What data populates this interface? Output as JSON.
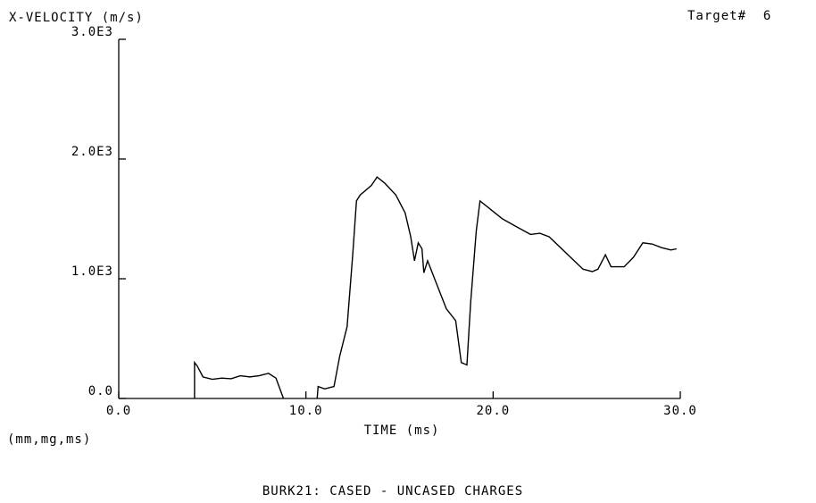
{
  "chart_data": {
    "type": "line",
    "title": "X-VELOCITY (m/s)",
    "annotation": "Target#  6",
    "x_label": "TIME (ms)",
    "units_note": "(mm,mg,ms)",
    "caption": "BURK21: CASED - UNCASED CHARGES",
    "color": "#000000",
    "x": [
      4.05,
      4.05,
      4.2,
      4.5,
      5,
      5.5,
      6,
      6.5,
      7,
      7.5,
      8,
      8.4,
      8.8,
      9.5,
      10.6,
      10.65,
      11.0,
      11.5,
      11.8,
      12.2,
      12.5,
      12.7,
      12.9,
      13.5,
      13.8,
      14.2,
      14.8,
      15.3,
      15.6,
      15.8,
      16.0,
      16.2,
      16.3,
      16.5,
      17.0,
      17.5,
      18.0,
      18.3,
      18.6,
      18.8,
      19.1,
      19.3,
      19.7,
      20.5,
      21.3,
      22.0,
      22.5,
      23.0,
      24.0,
      24.8,
      25.3,
      25.6,
      26.0,
      26.3,
      27.0,
      27.5,
      28.0,
      28.5,
      29.0,
      29.5,
      29.8
    ],
    "values": [
      0,
      300,
      270,
      180,
      160,
      170,
      165,
      190,
      180,
      190,
      210,
      170,
      0,
      null,
      0,
      100,
      80,
      100,
      350,
      600,
      1200,
      1650,
      1700,
      1780,
      1850,
      1800,
      1700,
      1550,
      1350,
      1150,
      1300,
      1250,
      1050,
      1150,
      950,
      750,
      650,
      300,
      280,
      800,
      1400,
      1650,
      1600,
      1500,
      1430,
      1370,
      1380,
      1350,
      1200,
      1080,
      1060,
      1080,
      1200,
      1100,
      1100,
      1180,
      1300,
      1290,
      1260,
      1240,
      1250
    ],
    "xlim": [
      0,
      30
    ],
    "ylim": [
      0,
      3000
    ],
    "xticks": [
      {
        "value": 0,
        "label": "0.0"
      },
      {
        "value": 10,
        "label": "10.0"
      },
      {
        "value": 20,
        "label": "20.0"
      },
      {
        "value": 30,
        "label": "30.0"
      }
    ],
    "yticks": [
      {
        "value": 0,
        "label": "0.0"
      },
      {
        "value": 1000,
        "label": "1.0E3"
      },
      {
        "value": 2000,
        "label": "2.0E3"
      },
      {
        "value": 3000,
        "label": "3.0E3"
      }
    ]
  }
}
